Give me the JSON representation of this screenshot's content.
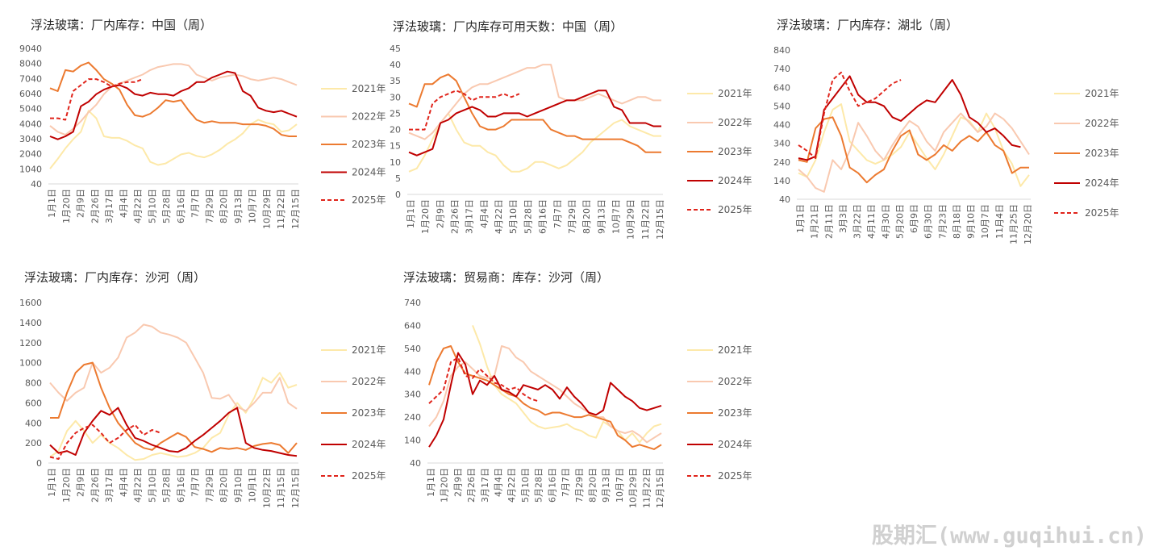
{
  "page": {
    "watermark": "股期汇(www.guqihui.cn)"
  },
  "chart_data": [
    {
      "type": "line",
      "title": "浮法玻璃：厂内库存：中国（周）",
      "yticks": [
        40,
        1040,
        2040,
        3040,
        4040,
        5040,
        6040,
        7040,
        8040,
        9040
      ],
      "ylim": [
        40,
        9040
      ],
      "xticks": [
        "1月1日",
        "1月20日",
        "2月9日",
        "2月26日",
        "3月17日",
        "4月4日",
        "4月22日",
        "5月10日",
        "5月28日",
        "6月16日",
        "7月7日",
        "7月29日",
        "8月20日",
        "9月13日",
        "10月7日",
        "10月29日",
        "11月22日",
        "12月15日"
      ],
      "legend_position": "right",
      "series": [
        {
          "name": "2021年",
          "color": "#fde9a9",
          "dash": false,
          "values": [
            1050,
            1700,
            2400,
            3000,
            3500,
            4900,
            4400,
            3200,
            3100,
            3100,
            2900,
            2600,
            2400,
            1500,
            1300,
            1400,
            1700,
            2000,
            2100,
            1900,
            1800,
            2000,
            2300,
            2700,
            3000,
            3400,
            4000,
            4300,
            4100,
            4000,
            3500,
            3600,
            4000
          ]
        },
        {
          "name": "2022年",
          "color": "#f9c9b0",
          "dash": false,
          "values": [
            3900,
            3500,
            3300,
            3700,
            4200,
            4800,
            5300,
            6000,
            6500,
            6700,
            6900,
            7100,
            7300,
            7600,
            7800,
            7900,
            8000,
            8000,
            7900,
            7300,
            7100,
            6900,
            7100,
            7200,
            7300,
            7200,
            7000,
            6900,
            7000,
            7100,
            7000,
            6800,
            6600
          ]
        },
        {
          "name": "2023年",
          "color": "#ec7a30",
          "dash": false,
          "values": [
            6400,
            6200,
            7600,
            7500,
            7900,
            8100,
            7600,
            7000,
            6700,
            6300,
            5300,
            4600,
            4500,
            4700,
            5100,
            5600,
            5500,
            5600,
            4900,
            4300,
            4100,
            4200,
            4100,
            4100,
            4100,
            4000,
            4000,
            4000,
            3900,
            3700,
            3300,
            3200,
            3200
          ]
        },
        {
          "name": "2024年",
          "color": "#c00000",
          "dash": false,
          "values": [
            3200,
            3000,
            3200,
            3500,
            5200,
            5500,
            6000,
            6300,
            6500,
            6600,
            6400,
            6000,
            5900,
            6100,
            6000,
            6000,
            5900,
            6200,
            6400,
            6800,
            6800,
            7100,
            7300,
            7500,
            7400,
            6200,
            5900,
            5100,
            4900,
            4800,
            4900,
            4700,
            4500
          ]
        },
        {
          "name": "2025年",
          "color": "#e0241b",
          "dash": true,
          "values": [
            4400,
            4400,
            4300,
            6200,
            6600,
            7000,
            7000,
            6800,
            6500,
            6700,
            6800,
            6800,
            7000
          ]
        }
      ]
    },
    {
      "type": "line",
      "title": "浮法玻璃：厂内库存可用天数：中国（周）",
      "yticks": [
        0,
        5,
        10,
        15,
        20,
        25,
        30,
        35,
        40,
        45
      ],
      "ylim": [
        0,
        45
      ],
      "xticks": [
        "1月1日",
        "1月20日",
        "2月9日",
        "2月26日",
        "3月17日",
        "4月4日",
        "4月22日",
        "5月10日",
        "5月28日",
        "6月16日",
        "7月7日",
        "7月29日",
        "8月20日",
        "9月13日",
        "10月7日",
        "10月29日",
        "11月22日",
        "12月15日"
      ],
      "legend_position": "right",
      "series": [
        {
          "name": "2021年",
          "color": "#fde9a9",
          "dash": false,
          "values": [
            7,
            8,
            12,
            17,
            22,
            25,
            20,
            16,
            15,
            15,
            13,
            12,
            9,
            7,
            7,
            8,
            10,
            10,
            9,
            8,
            9,
            11,
            13,
            16,
            18,
            20,
            22,
            23,
            21,
            20,
            19,
            18,
            18
          ]
        },
        {
          "name": "2022年",
          "color": "#f9c9b0",
          "dash": false,
          "values": [
            19,
            18,
            17,
            19,
            22,
            25,
            28,
            31,
            33,
            34,
            34,
            35,
            36,
            37,
            38,
            39,
            39,
            40,
            40,
            30,
            29,
            29,
            29,
            30,
            31,
            30,
            29,
            28,
            29,
            30,
            30,
            29,
            29
          ]
        },
        {
          "name": "2023年",
          "color": "#ec7a30",
          "dash": false,
          "values": [
            28,
            27,
            34,
            34,
            36,
            37,
            35,
            30,
            25,
            21,
            20,
            20,
            21,
            23,
            23,
            23,
            23,
            23,
            20,
            19,
            18,
            18,
            17,
            17,
            17,
            17,
            17,
            17,
            16,
            15,
            13,
            13,
            13
          ]
        },
        {
          "name": "2024年",
          "color": "#c00000",
          "dash": false,
          "values": [
            13,
            12,
            13,
            14,
            22,
            23,
            25,
            26,
            27,
            26,
            24,
            24,
            25,
            25,
            25,
            24,
            25,
            26,
            27,
            28,
            29,
            29,
            30,
            31,
            32,
            32,
            27,
            26,
            22,
            22,
            22,
            21,
            21
          ]
        },
        {
          "name": "2025年",
          "color": "#e0241b",
          "dash": true,
          "values": [
            20,
            20,
            20,
            28,
            30,
            31,
            32,
            31,
            29,
            30,
            30,
            30,
            31,
            30,
            31
          ]
        }
      ]
    },
    {
      "type": "line",
      "title": "浮法玻璃：厂内库存：湖北（周）",
      "yticks": [
        40,
        140,
        240,
        340,
        440,
        540,
        640,
        740,
        840
      ],
      "ylim": [
        40,
        840
      ],
      "xticks": [
        "1月1日",
        "1月21日",
        "2月11日",
        "3月3日",
        "3月22日",
        "4月11日",
        "4月30日",
        "5月20日",
        "6月9日",
        "6月30日",
        "7月23日",
        "8月18日",
        "9月10日",
        "10月7日",
        "11月4日",
        "11月25日",
        "12月20日"
      ],
      "legend_position": "right",
      "series": [
        {
          "name": "2021年",
          "color": "#fde9a9",
          "dash": false,
          "values": [
            180,
            160,
            250,
            400,
            520,
            550,
            350,
            300,
            250,
            230,
            250,
            280,
            320,
            400,
            330,
            260,
            200,
            280,
            380,
            480,
            460,
            400,
            500,
            420,
            300,
            230,
            110,
            170
          ]
        },
        {
          "name": "2022年",
          "color": "#f9c9b0",
          "dash": false,
          "values": [
            200,
            160,
            100,
            80,
            250,
            200,
            300,
            450,
            380,
            300,
            250,
            330,
            400,
            460,
            430,
            350,
            300,
            400,
            450,
            500,
            450,
            400,
            430,
            500,
            470,
            420,
            350,
            280
          ]
        },
        {
          "name": "2023年",
          "color": "#ec7a30",
          "dash": false,
          "values": [
            250,
            240,
            420,
            470,
            480,
            380,
            210,
            180,
            130,
            170,
            200,
            300,
            380,
            410,
            280,
            250,
            280,
            330,
            300,
            350,
            380,
            350,
            400,
            330,
            300,
            180,
            210,
            210
          ]
        },
        {
          "name": "2024年",
          "color": "#c00000",
          "dash": false,
          "values": [
            260,
            250,
            270,
            520,
            580,
            640,
            700,
            600,
            560,
            560,
            540,
            480,
            460,
            500,
            540,
            570,
            560,
            620,
            680,
            600,
            480,
            450,
            400,
            420,
            380,
            330,
            320
          ]
        },
        {
          "name": "2025年",
          "color": "#e0241b",
          "dash": true,
          "values": [
            330,
            300,
            260,
            500,
            680,
            720,
            620,
            540,
            560,
            580,
            620,
            660,
            680
          ]
        }
      ]
    },
    {
      "type": "line",
      "title": "浮法玻璃：厂内库存：沙河（周）",
      "yticks": [
        0,
        200,
        400,
        600,
        800,
        1000,
        1200,
        1400,
        1600
      ],
      "ylim": [
        0,
        1600
      ],
      "xticks": [
        "1月1日",
        "1月20日",
        "2月9日",
        "2月26日",
        "3月17日",
        "4月4日",
        "4月22日",
        "5月10日",
        "5月28日",
        "6月16日",
        "7月7日",
        "7月29日",
        "8月20日",
        "9月10日",
        "10月1日",
        "10月22日",
        "11月15日",
        "12月15日"
      ],
      "legend_position": "right",
      "series": [
        {
          "name": "2021年",
          "color": "#fde9a9",
          "dash": false,
          "values": [
            60,
            120,
            320,
            420,
            320,
            200,
            280,
            200,
            150,
            80,
            30,
            40,
            80,
            100,
            80,
            60,
            70,
            100,
            150,
            250,
            300,
            480,
            600,
            500,
            650,
            850,
            800,
            900,
            750,
            780
          ]
        },
        {
          "name": "2022年",
          "color": "#f9c9b0",
          "dash": false,
          "values": [
            800,
            700,
            620,
            700,
            750,
            1000,
            900,
            950,
            1050,
            1250,
            1300,
            1380,
            1360,
            1300,
            1280,
            1250,
            1200,
            1050,
            900,
            650,
            640,
            680,
            560,
            520,
            600,
            700,
            700,
            850,
            600,
            540
          ]
        },
        {
          "name": "2023年",
          "color": "#ec7a30",
          "dash": false,
          "values": [
            450,
            450,
            700,
            900,
            980,
            1000,
            750,
            550,
            400,
            300,
            200,
            150,
            130,
            200,
            250,
            300,
            260,
            160,
            140,
            110,
            150,
            140,
            150,
            130,
            170,
            190,
            200,
            180,
            100,
            200
          ]
        },
        {
          "name": "2024年",
          "color": "#c00000",
          "dash": false,
          "values": [
            180,
            100,
            120,
            80,
            300,
            420,
            520,
            480,
            550,
            380,
            250,
            220,
            180,
            150,
            120,
            110,
            150,
            220,
            280,
            350,
            420,
            500,
            550,
            200,
            150,
            130,
            120,
            100,
            80,
            70
          ]
        },
        {
          "name": "2025年",
          "color": "#e0241b",
          "dash": true,
          "values": [
            60,
            40,
            200,
            300,
            350,
            380,
            300,
            200,
            250,
            330,
            380,
            280,
            330,
            300
          ]
        }
      ]
    },
    {
      "type": "line",
      "title": "浮法玻璃：贸易商：库存：沙河（周）",
      "yticks": [
        40,
        140,
        240,
        340,
        440,
        540,
        640,
        740
      ],
      "ylim": [
        40,
        740
      ],
      "xticks": [
        "1月1日",
        "1月20日",
        "2月9日",
        "2月26日",
        "3月17日",
        "4月4日",
        "4月22日",
        "5月10日",
        "5月28日",
        "6月16日",
        "7月7日",
        "7月29日",
        "8月20日",
        "9月13日",
        "10月7日",
        "10月29日",
        "11月22日",
        "12月15日"
      ],
      "legend_position": "right",
      "series": [
        {
          "name": "2021年",
          "color": "#fde9a9",
          "dash": false,
          "values": [
            null,
            null,
            null,
            null,
            null,
            null,
            640,
            560,
            460,
            380,
            340,
            320,
            300,
            260,
            220,
            200,
            190,
            195,
            200,
            210,
            190,
            180,
            160,
            150,
            220,
            200,
            180,
            140,
            170,
            130,
            170,
            200,
            210
          ]
        },
        {
          "name": "2022年",
          "color": "#f9c9b0",
          "dash": false,
          "values": [
            200,
            240,
            310,
            420,
            460,
            480,
            450,
            420,
            410,
            420,
            550,
            540,
            500,
            480,
            440,
            420,
            400,
            380,
            360,
            330,
            300,
            280,
            260,
            240,
            240,
            200,
            180,
            170,
            180,
            160,
            130,
            150,
            170
          ]
        },
        {
          "name": "2023年",
          "color": "#ec7a30",
          "dash": false,
          "values": [
            380,
            480,
            540,
            550,
            480,
            430,
            420,
            410,
            400,
            380,
            360,
            340,
            330,
            300,
            280,
            270,
            250,
            260,
            260,
            250,
            240,
            240,
            250,
            240,
            230,
            220,
            160,
            140,
            110,
            120,
            110,
            100,
            120
          ]
        },
        {
          "name": "2024年",
          "color": "#c00000",
          "dash": false,
          "values": [
            110,
            160,
            230,
            380,
            520,
            470,
            340,
            400,
            380,
            420,
            360,
            350,
            330,
            380,
            370,
            360,
            380,
            360,
            320,
            370,
            330,
            300,
            260,
            250,
            270,
            390,
            360,
            330,
            310,
            280,
            270,
            280,
            290
          ]
        },
        {
          "name": "2025年",
          "color": "#e0241b",
          "dash": true,
          "values": [
            300,
            330,
            360,
            480,
            500,
            420,
            410,
            450,
            420,
            390,
            380,
            360,
            370,
            340,
            320,
            310
          ]
        }
      ]
    }
  ]
}
